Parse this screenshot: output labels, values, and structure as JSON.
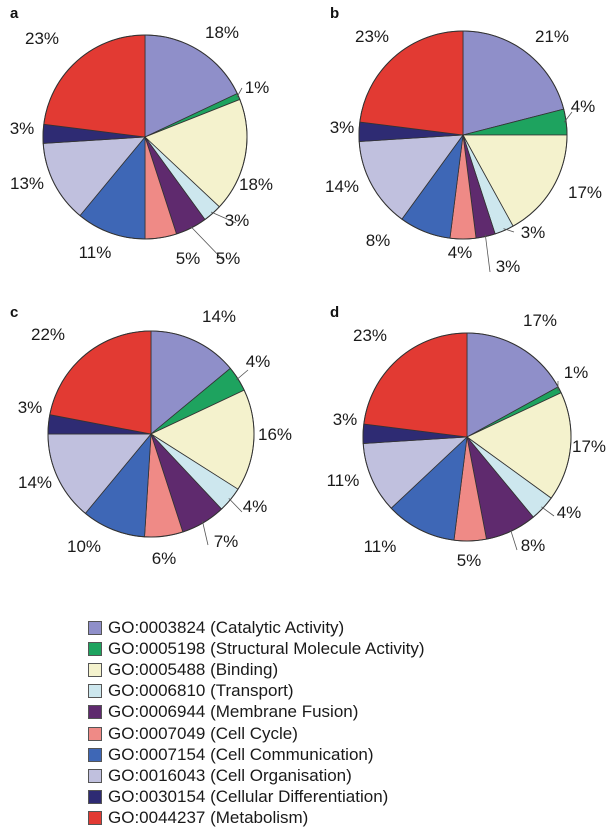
{
  "chart_data": [
    {
      "type": "pie",
      "panel_label": "a",
      "categories": [
        "GO:0003824 (Catalytic Activity)",
        "GO:0005198 (Structural Molecule Activity)",
        "GO:0005488 (Binding)",
        "GO:0006810 (Transport)",
        "GO:0006944 (Membrane Fusion)",
        "GO:0007049 (Cell Cycle)",
        "GO:0007154 (Cell Communication)",
        "GO:0016043 (Cell Organisation)",
        "GO:0030154 (Cellular Differentiation)",
        "GO:0044237 (Metabolism)"
      ],
      "values": [
        18,
        1,
        18,
        3,
        5,
        5,
        11,
        13,
        3,
        23
      ],
      "labels": [
        "18%",
        "1%",
        "18%",
        "3%",
        "5%",
        "5%",
        "11%",
        "13%",
        "3%",
        "23%"
      ]
    },
    {
      "type": "pie",
      "panel_label": "b",
      "categories": [
        "GO:0003824 (Catalytic Activity)",
        "GO:0005198 (Structural Molecule Activity)",
        "GO:0005488 (Binding)",
        "GO:0006810 (Transport)",
        "GO:0006944 (Membrane Fusion)",
        "GO:0007049 (Cell Cycle)",
        "GO:0007154 (Cell Communication)",
        "GO:0016043 (Cell Organisation)",
        "GO:0030154 (Cellular Differentiation)",
        "GO:0044237 (Metabolism)"
      ],
      "values": [
        21,
        4,
        17,
        3,
        3,
        4,
        8,
        14,
        3,
        23
      ],
      "labels": [
        "21%",
        "4%",
        "17%",
        "3%",
        "3%",
        "4%",
        "8%",
        "14%",
        "3%",
        "23%"
      ]
    },
    {
      "type": "pie",
      "panel_label": "c",
      "categories": [
        "GO:0003824 (Catalytic Activity)",
        "GO:0005198 (Structural Molecule Activity)",
        "GO:0005488 (Binding)",
        "GO:0006810 (Transport)",
        "GO:0006944 (Membrane Fusion)",
        "GO:0007049 (Cell Cycle)",
        "GO:0007154 (Cell Communication)",
        "GO:0016043 (Cell Organisation)",
        "GO:0030154 (Cellular Differentiation)",
        "GO:0044237 (Metabolism)"
      ],
      "values": [
        14,
        4,
        16,
        4,
        7,
        6,
        10,
        14,
        3,
        22
      ],
      "labels": [
        "14%",
        "4%",
        "16%",
        "4%",
        "7%",
        "6%",
        "10%",
        "14%",
        "3%",
        "22%"
      ]
    },
    {
      "type": "pie",
      "panel_label": "d",
      "categories": [
        "GO:0003824 (Catalytic Activity)",
        "GO:0005198 (Structural Molecule Activity)",
        "GO:0005488 (Binding)",
        "GO:0006810 (Transport)",
        "GO:0006944 (Membrane Fusion)",
        "GO:0007049 (Cell Cycle)",
        "GO:0007154 (Cell Communication)",
        "GO:0016043 (Cell Organisation)",
        "GO:0030154 (Cellular Differentiation)",
        "GO:0044237 (Metabolism)"
      ],
      "values": [
        17,
        1,
        17,
        4,
        8,
        5,
        11,
        11,
        3,
        23
      ],
      "labels": [
        "17%",
        "1%",
        "17%",
        "4%",
        "8%",
        "5%",
        "11%",
        "11%",
        "3%",
        "23%"
      ]
    }
  ],
  "legend": {
    "placement": "bottom",
    "items": [
      {
        "label": "GO:0003824 (Catalytic Activity)",
        "color": "#8f8fc9"
      },
      {
        "label": "GO:0005198 (Structural Molecule Activity)",
        "color": "#1ea35f"
      },
      {
        "label": "GO:0005488 (Binding)",
        "color": "#f4f2cd"
      },
      {
        "label": "GO:0006810 (Transport)",
        "color": "#cde7ee"
      },
      {
        "label": "GO:0006944 (Membrane Fusion)",
        "color": "#5f2a6e"
      },
      {
        "label": "GO:0007049 (Cell Cycle)",
        "color": "#ef8a86"
      },
      {
        "label": "GO:0007154 (Cell Communication)",
        "color": "#3e67b6"
      },
      {
        "label": "GO:0016043 (Cell Organisation)",
        "color": "#c0c0de"
      },
      {
        "label": "GO:0030154 (Cellular Differentiation)",
        "color": "#2e2b73"
      },
      {
        "label": "GO:0044237 (Metabolism)",
        "color": "#e23a33"
      }
    ]
  }
}
